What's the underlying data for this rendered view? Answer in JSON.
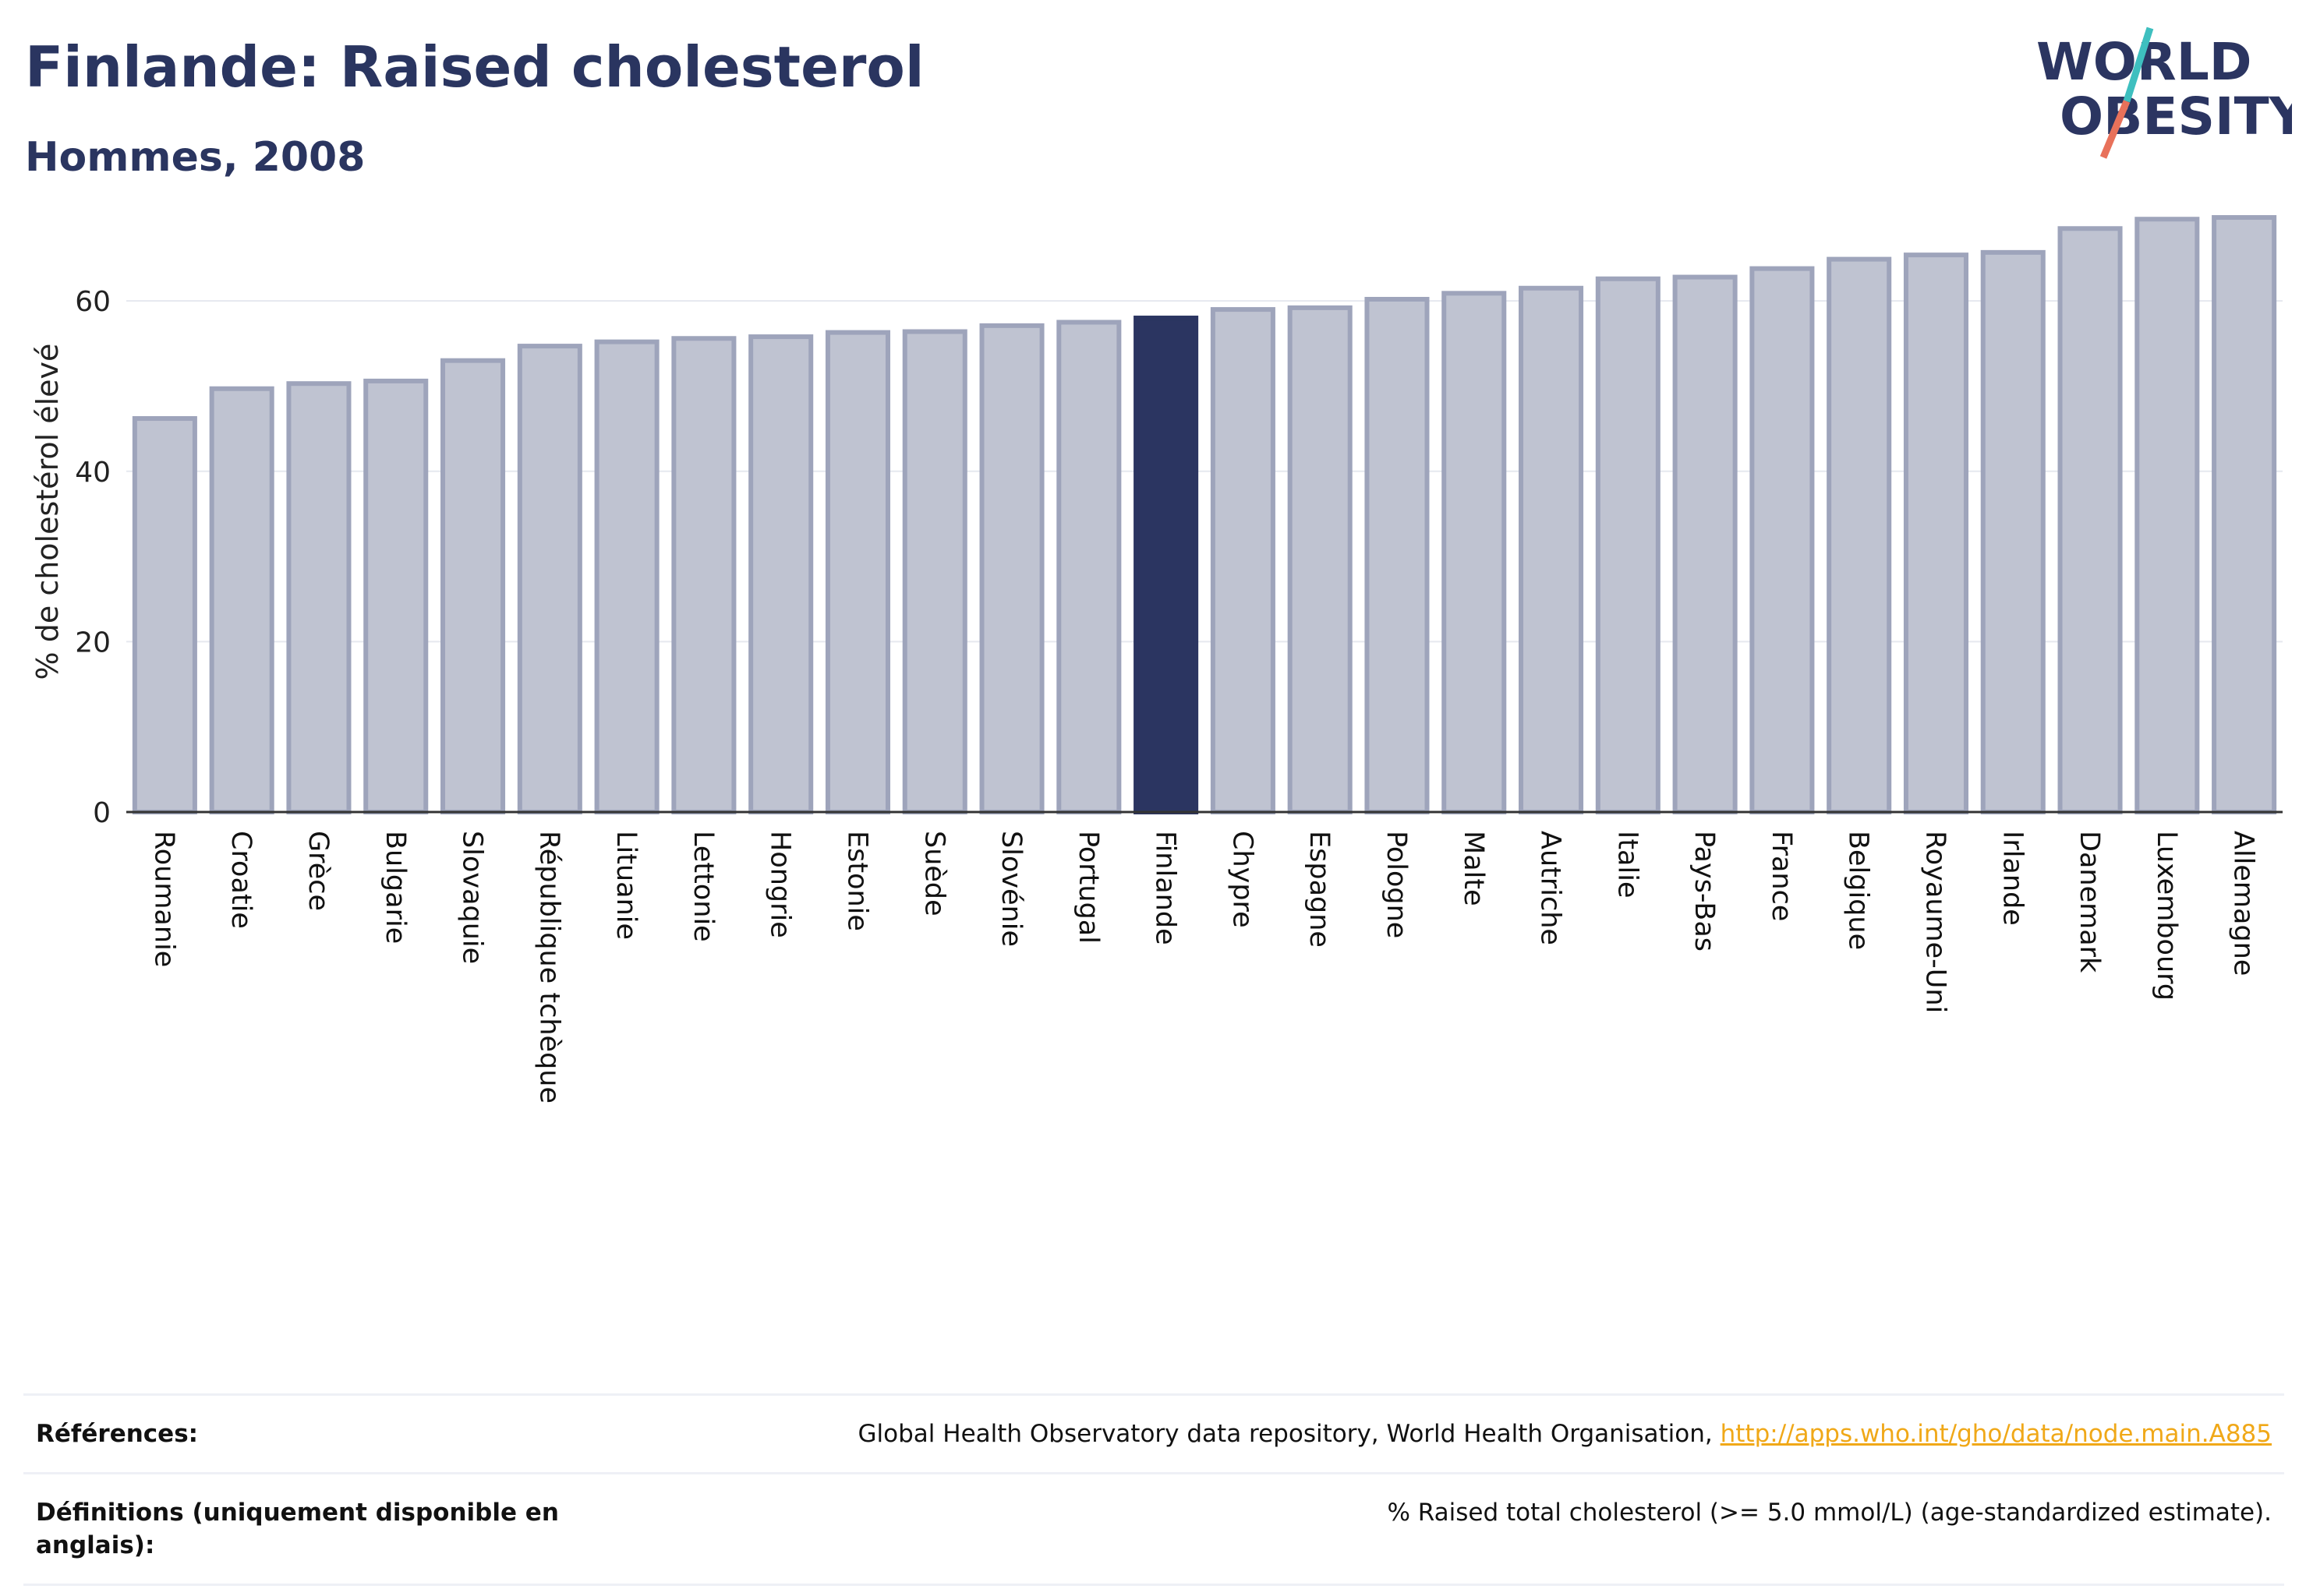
{
  "header": {
    "title": "Finlande: Raised cholesterol",
    "subtitle": "Hommes, 2008"
  },
  "logo": {
    "line1": "WORLD",
    "line2": "OBESITY"
  },
  "colors": {
    "highlight": "#2b3561",
    "bar_fill": "#bfc3d1",
    "bar_stroke": "#9ea4bb",
    "accent_teal": "#3ebfbf",
    "accent_coral": "#e8715a"
  },
  "chart_data": {
    "type": "bar",
    "ylabel": "% de cholestérol élevé",
    "ylim": [
      0,
      72
    ],
    "yticks": [
      0,
      20,
      40,
      60
    ],
    "grid": true,
    "highlight": "Finlande",
    "categories": [
      "Roumanie",
      "Croatie",
      "Grèce",
      "Bulgarie",
      "Slovaquie",
      "République tchèque",
      "Lituanie",
      "Lettonie",
      "Hongrie",
      "Estonie",
      "Suède",
      "Slovénie",
      "Portugal",
      "Finlande",
      "Chypre",
      "Espagne",
      "Pologne",
      "Malte",
      "Autriche",
      "Italie",
      "Pays-Bas",
      "France",
      "Belgique",
      "Royaume-Uni",
      "Irlande",
      "Danemark",
      "Luxembourg",
      "Allemagne"
    ],
    "values": [
      46.2,
      49.7,
      50.3,
      50.6,
      53.0,
      54.7,
      55.2,
      55.6,
      55.8,
      56.3,
      56.4,
      57.1,
      57.5,
      58.0,
      59.0,
      59.2,
      60.2,
      60.9,
      61.5,
      62.6,
      62.8,
      63.8,
      64.9,
      65.4,
      65.7,
      68.5,
      69.6,
      69.8
    ]
  },
  "references": {
    "sources_label": "Références:",
    "sources_text": "Global Health Observatory data repository, World Health Organisation, ",
    "sources_link": "http://apps.who.int/gho/data/node.main.A885",
    "definitions_label": "Définitions (uniquement disponible en anglais):",
    "definitions_text": "% Raised total cholesterol (>= 5.0 mmol/L) (age-standardized estimate)."
  }
}
